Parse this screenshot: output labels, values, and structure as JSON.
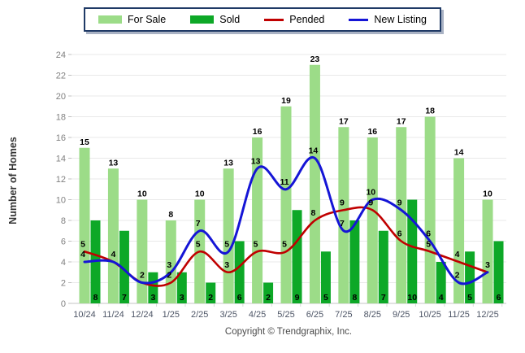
{
  "chart_data": {
    "type": "combo",
    "title": "",
    "categories": [
      "10/24",
      "11/24",
      "12/24",
      "1/25",
      "2/25",
      "3/25",
      "4/25",
      "5/25",
      "6/25",
      "7/25",
      "8/25",
      "9/25",
      "10/25",
      "11/25",
      "12/25"
    ],
    "series": [
      {
        "name": "For Sale",
        "type": "bar",
        "color": "#9CDC88",
        "values": [
          15,
          13,
          10,
          8,
          10,
          13,
          16,
          19,
          23,
          17,
          16,
          17,
          18,
          14,
          10
        ]
      },
      {
        "name": "Sold",
        "type": "bar",
        "color": "#0DA827",
        "values": [
          8,
          7,
          3,
          3,
          2,
          6,
          2,
          9,
          5,
          8,
          7,
          10,
          4,
          5,
          6
        ]
      },
      {
        "name": "Pended",
        "type": "line",
        "color": "#C00000",
        "values": [
          5,
          4,
          2,
          2,
          5,
          3,
          5,
          5,
          8,
          9,
          9,
          6,
          5,
          4,
          3
        ]
      },
      {
        "name": "New Listing",
        "type": "line",
        "color": "#1515D6",
        "values": [
          4,
          4,
          2,
          3,
          7,
          5,
          13,
          11,
          14,
          7,
          10,
          9,
          6,
          2,
          3
        ]
      }
    ],
    "xlabel": "",
    "ylabel": "Number of Homes",
    "ylim": [
      0,
      24
    ],
    "ytick_step": 2,
    "grid": true,
    "legend_position": "top",
    "value_labels": true,
    "colors": {
      "gridline": "#E9E9E9",
      "axis_line": "#C5C5C5",
      "y_tick_text": "#808080",
      "x_tick_text": "#4D5566",
      "legend_border": "#1F3A66"
    }
  },
  "footer": {
    "copyright": "Copyright © Trendgraphix, Inc."
  }
}
